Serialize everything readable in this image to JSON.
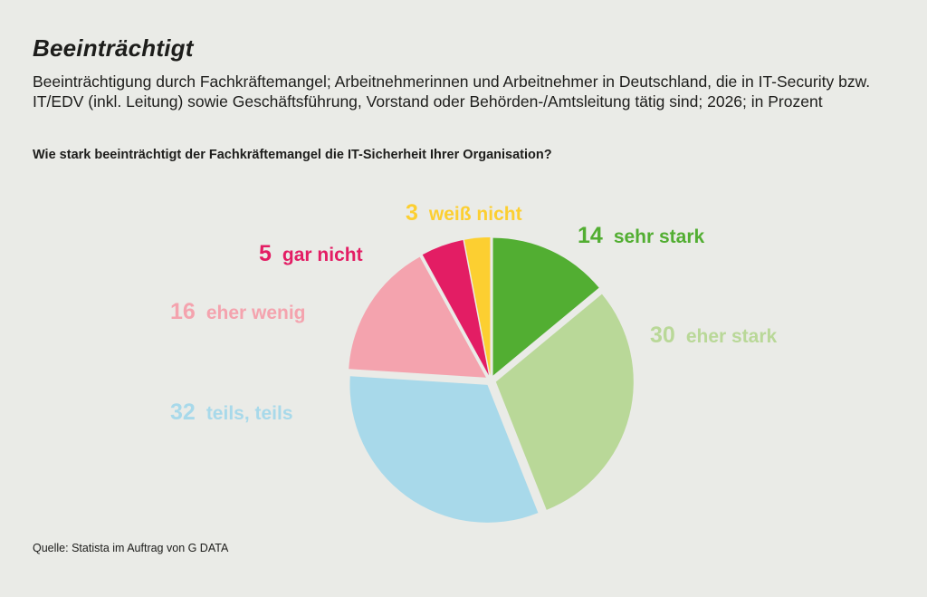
{
  "header": {
    "title": "Beeinträchtigt",
    "subtitle": "Beeinträchtigung durch Fachkräftemangel; Arbeitnehmerinnen und Arbeitnehmer in Deutschland, die in IT-Security bzw. IT/EDV (inkl. Leitung) sowie Geschäftsführung, Vorstand oder Behörden-/Amtsleitung tätig sind; 2026; in Prozent",
    "question": "Wie stark beeinträchtigt der Fachkräftemangel die IT-Sicherheit Ihrer Organisation?"
  },
  "footer": {
    "source": "Quelle: Statista im Auftrag von G DATA"
  },
  "chart_data": {
    "type": "pie",
    "title": "Beeinträchtigt",
    "unit": "%",
    "start": "12 o'clock",
    "direction": "clockwise",
    "legend": "none",
    "slices": [
      {
        "label": "sehr stark",
        "value": 14,
        "color": "#52ae32"
      },
      {
        "label": "eher stark",
        "value": 30,
        "color": "#b9d898"
      },
      {
        "label": "teils, teils",
        "value": 32,
        "color": "#a8d9ea"
      },
      {
        "label": "eher wenig",
        "value": 16,
        "color": "#f4a3ae"
      },
      {
        "label": "gar nicht",
        "value": 5,
        "color": "#e31d64"
      },
      {
        "label": "weiß nicht",
        "value": 3,
        "color": "#fccf31"
      }
    ]
  }
}
